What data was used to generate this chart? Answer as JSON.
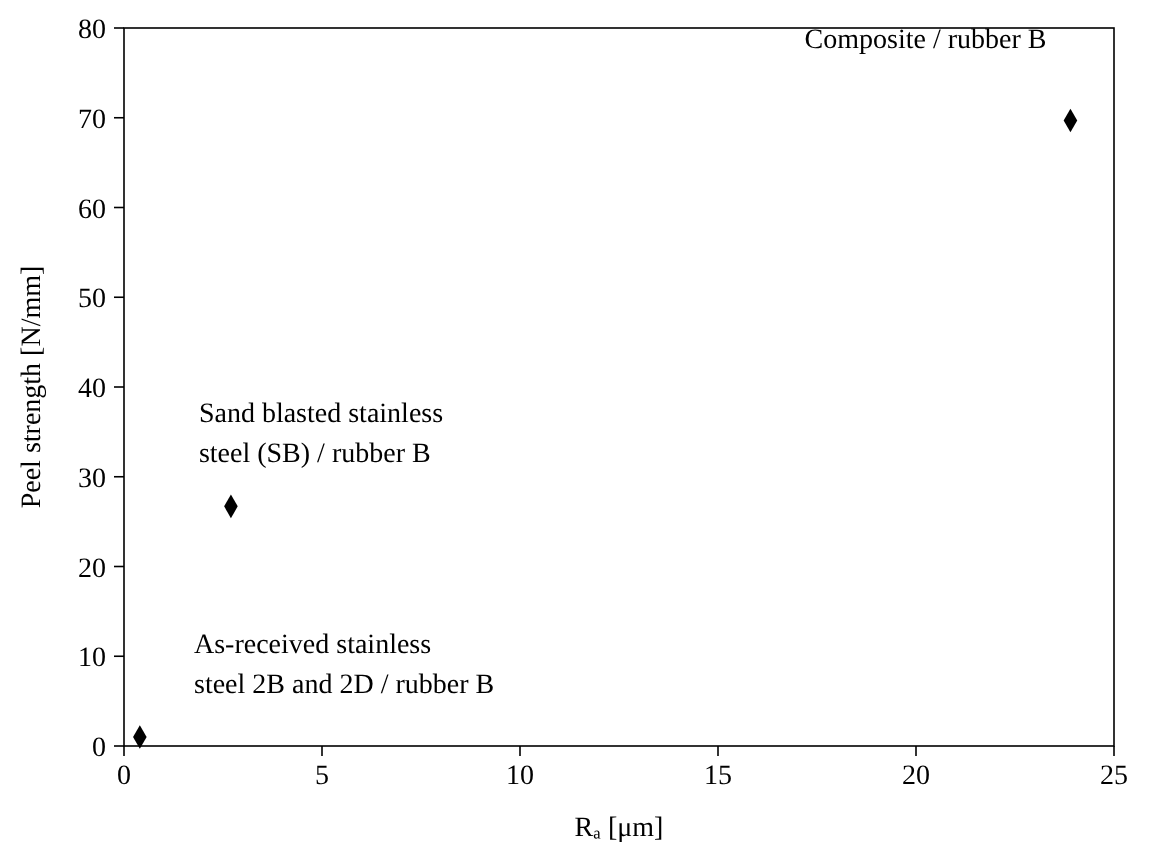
{
  "chart_data": {
    "type": "scatter",
    "xlabel": "Rₐ [μm]",
    "ylabel": "Peel strength [N/mm]",
    "x": [
      0.4,
      2.7,
      23.9
    ],
    "values": [
      1,
      26.7,
      69.7
    ],
    "color": "#000000",
    "marker": "diamond",
    "xlim": [
      0,
      25
    ],
    "ylim": [
      0,
      80
    ],
    "xticks": [
      0,
      5,
      10,
      15,
      20,
      25
    ],
    "yticks": [
      0,
      10,
      20,
      30,
      40,
      50,
      60,
      70,
      80
    ],
    "grid": false,
    "annotations": [
      {
        "text": "As-received stainless\nsteel 2B and 2D / rubber B",
        "x": 0.4,
        "y": 1
      },
      {
        "text": "Sand blasted stainless\nsteel (SB) / rubber B",
        "x": 2.7,
        "y": 26.7
      },
      {
        "text": "Composite / rubber B",
        "x": 23.9,
        "y": 69.7
      }
    ]
  }
}
